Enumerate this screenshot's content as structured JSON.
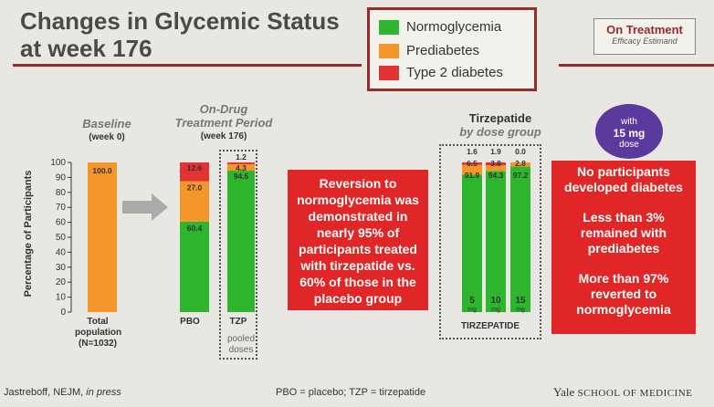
{
  "title_line1": "Changes in Glycemic Status",
  "title_line2": "at week 176",
  "legend": {
    "normo": "Normoglycemia",
    "pre": "Prediabetes",
    "t2d": "Type 2 diabetes"
  },
  "colors": {
    "normo": "#2db52d",
    "pre": "#f4962a",
    "t2d": "#e23232"
  },
  "on_treatment": {
    "title": "On Treatment",
    "sub": "Efficacy Estimand"
  },
  "baseline": {
    "header": "Baseline",
    "sub": "(week 0)"
  },
  "ondrug": {
    "header_line1": "On-Drug",
    "header_line2": "Treatment Period",
    "sub": "(week 176)"
  },
  "dose_group": {
    "header_line1": "Tirzepatide",
    "header_line2": "by dose group"
  },
  "purple_badge": {
    "line1": "with",
    "line2": "15 mg",
    "line3": "dose"
  },
  "y_axis_label": "Percentage of Participants",
  "y_ticks": [
    "100",
    "90",
    "80",
    "70",
    "60",
    "50",
    "40",
    "30",
    "20",
    "10",
    "0"
  ],
  "center_box": "Reversion to normoglycemia was demonstrated in nearly 95% of participants treated with tirzepatide vs. 60% of those in the placebo group",
  "right_box": {
    "p1": "No participants developed diabetes",
    "p2": "Less than 3% remained with prediabetes",
    "p3": "More than 97% reverted to normoglycemia"
  },
  "x_labels": {
    "total_line1": "Total",
    "total_line2": "population",
    "total_line3": "(N=1032)",
    "pbo": "PBO",
    "tzp": "TZP",
    "pooled_line1": "pooled",
    "pooled_line2": "doses",
    "tirzepatide": "TIRZEPATIDE"
  },
  "footer": {
    "cite_author": "Jastreboff, NEJM,",
    "cite_status": "in press",
    "abbr": "PBO = placebo; TZP = tirzepatide",
    "yale": "Yale",
    "yale_rest": "SCHOOL OF MEDICINE"
  },
  "chart_data": {
    "type": "bar",
    "stacked": true,
    "ylabel": "Percentage of Participants",
    "ylim": [
      0,
      100
    ],
    "categories": [
      "Baseline",
      "PBO",
      "TZP",
      "5 mg",
      "10 mg",
      "15 mg"
    ],
    "series": [
      {
        "name": "Normoglycemia",
        "values": [
          0,
          60.4,
          94.5,
          91.9,
          94.3,
          97.2
        ],
        "labels": [
          "",
          "60.4",
          "94.5",
          "91.9",
          "94.3",
          "97.2"
        ]
      },
      {
        "name": "Prediabetes",
        "values": [
          100.0,
          27.0,
          4.3,
          6.5,
          3.8,
          2.8
        ],
        "labels": [
          "100.0",
          "27.0",
          "4.3",
          "6.5",
          "3.8",
          "2.8"
        ]
      },
      {
        "name": "Type 2 diabetes",
        "values": [
          0,
          12.6,
          1.2,
          1.6,
          1.9,
          0.0
        ],
        "labels": [
          "",
          "12.6",
          "1.2",
          "1.6",
          "1.9",
          "0.0"
        ]
      }
    ],
    "dose_labels": [
      "5",
      "10",
      "15"
    ],
    "dose_unit": "mg"
  }
}
